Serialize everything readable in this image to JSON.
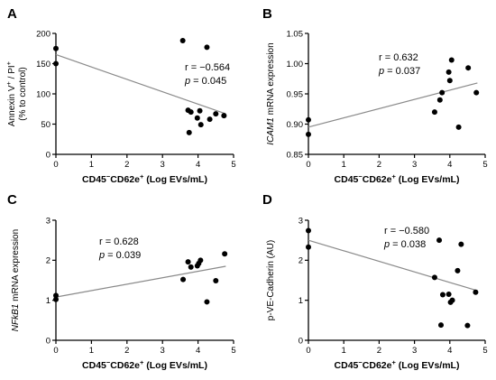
{
  "chart_data": [
    {
      "type": "scatter",
      "panel": "A",
      "xlabel": "CD45⁻CD62e⁺ (Log EVs/mL)",
      "ylabel": "Annexin V⁺ / PI⁺ (% to control)",
      "xlim": [
        0,
        5
      ],
      "ylim": [
        0,
        200
      ],
      "xticks": [
        "0",
        "1",
        "2",
        "3",
        "4",
        "5"
      ],
      "yticks": [
        "0",
        "50",
        "100",
        "150",
        "200"
      ],
      "stats": {
        "r": "r  =  −0.564",
        "p": "p = 0.045"
      },
      "regression": {
        "x": [
          0,
          4.78
        ],
        "y": [
          165,
          67
        ]
      },
      "points": [
        {
          "x": 0.0,
          "y": 175
        },
        {
          "x": 0.0,
          "y": 150
        },
        {
          "x": 3.57,
          "y": 188
        },
        {
          "x": 3.72,
          "y": 73
        },
        {
          "x": 3.75,
          "y": 36
        },
        {
          "x": 3.8,
          "y": 70
        },
        {
          "x": 3.98,
          "y": 60
        },
        {
          "x": 4.05,
          "y": 72
        },
        {
          "x": 4.08,
          "y": 49
        },
        {
          "x": 4.25,
          "y": 177
        },
        {
          "x": 4.33,
          "y": 58
        },
        {
          "x": 4.5,
          "y": 67
        },
        {
          "x": 4.73,
          "y": 64
        }
      ]
    },
    {
      "type": "scatter",
      "panel": "B",
      "xlabel": "CD45⁻CD62e⁺ (Log EVs/mL)",
      "ylabel": "ICAM1 mRNA expression",
      "xlim": [
        0,
        5
      ],
      "ylim": [
        0.85,
        1.05
      ],
      "xticks": [
        "0",
        "1",
        "2",
        "3",
        "4",
        "5"
      ],
      "yticks": [
        "0.85",
        "0.90",
        "0.95",
        "1.00",
        "1.05"
      ],
      "stats": {
        "r": "r = 0.632",
        "p": "p = 0.037"
      },
      "regression": {
        "x": [
          0,
          4.78
        ],
        "y": [
          0.895,
          0.968
        ]
      },
      "points": [
        {
          "x": 0.0,
          "y": 0.907
        },
        {
          "x": 0.0,
          "y": 0.883
        },
        {
          "x": 3.57,
          "y": 0.92
        },
        {
          "x": 3.72,
          "y": 0.94
        },
        {
          "x": 3.78,
          "y": 0.952
        },
        {
          "x": 3.97,
          "y": 0.986
        },
        {
          "x": 4.0,
          "y": 0.972
        },
        {
          "x": 4.05,
          "y": 1.006
        },
        {
          "x": 4.25,
          "y": 0.895
        },
        {
          "x": 4.52,
          "y": 0.993
        },
        {
          "x": 4.75,
          "y": 0.952
        }
      ]
    },
    {
      "type": "scatter",
      "panel": "C",
      "xlabel": "CD45⁻CD62e⁺ (Log EVs/mL)",
      "ylabel": "NFkB1 mRNA expression",
      "xlim": [
        0,
        5
      ],
      "ylim": [
        0,
        3
      ],
      "xticks": [
        "0",
        "1",
        "2",
        "3",
        "4",
        "5"
      ],
      "yticks": [
        "0",
        "1",
        "2",
        "3"
      ],
      "stats": {
        "r": "r = 0.628",
        "p": "p = 0.039"
      },
      "regression": {
        "x": [
          0,
          4.78
        ],
        "y": [
          1.08,
          1.85
        ]
      },
      "points": [
        {
          "x": 0.0,
          "y": 1.12
        },
        {
          "x": 0.0,
          "y": 1.02
        },
        {
          "x": 3.58,
          "y": 1.52
        },
        {
          "x": 3.72,
          "y": 1.96
        },
        {
          "x": 3.8,
          "y": 1.83
        },
        {
          "x": 3.98,
          "y": 1.86
        },
        {
          "x": 4.02,
          "y": 1.92
        },
        {
          "x": 4.07,
          "y": 2.0
        },
        {
          "x": 4.25,
          "y": 0.96
        },
        {
          "x": 4.5,
          "y": 1.49
        },
        {
          "x": 4.75,
          "y": 2.16
        }
      ]
    },
    {
      "type": "scatter",
      "panel": "D",
      "xlabel": "CD45⁻CD62e⁺ (Log EVs/mL)",
      "ylabel": "p-VE-Cadherin (AU)",
      "xlim": [
        0,
        5
      ],
      "ylim": [
        0,
        3
      ],
      "xticks": [
        "0",
        "1",
        "2",
        "3",
        "4",
        "5"
      ],
      "yticks": [
        "0",
        "1",
        "2",
        "3"
      ],
      "stats": {
        "r": "r  =  −0.580",
        "p": "p = 0.038"
      },
      "regression": {
        "x": [
          0,
          4.78
        ],
        "y": [
          2.5,
          1.24
        ]
      },
      "points": [
        {
          "x": 0.0,
          "y": 2.74
        },
        {
          "x": 0.0,
          "y": 2.33
        },
        {
          "x": 3.57,
          "y": 1.57
        },
        {
          "x": 3.7,
          "y": 2.5
        },
        {
          "x": 3.75,
          "y": 0.38
        },
        {
          "x": 3.8,
          "y": 1.14
        },
        {
          "x": 3.97,
          "y": 1.15
        },
        {
          "x": 4.02,
          "y": 0.95
        },
        {
          "x": 4.07,
          "y": 1.0
        },
        {
          "x": 4.22,
          "y": 1.74
        },
        {
          "x": 4.32,
          "y": 2.4
        },
        {
          "x": 4.5,
          "y": 0.37
        },
        {
          "x": 4.73,
          "y": 1.2
        }
      ]
    }
  ]
}
